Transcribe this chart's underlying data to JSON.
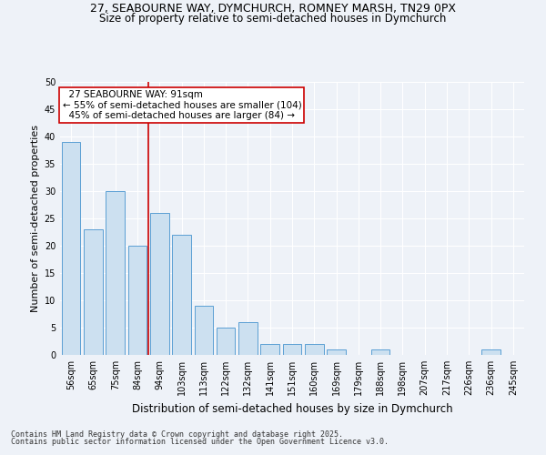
{
  "title1": "27, SEABOURNE WAY, DYMCHURCH, ROMNEY MARSH, TN29 0PX",
  "title2": "Size of property relative to semi-detached houses in Dymchurch",
  "xlabel": "Distribution of semi-detached houses by size in Dymchurch",
  "ylabel": "Number of semi-detached properties",
  "categories": [
    "56sqm",
    "65sqm",
    "75sqm",
    "84sqm",
    "94sqm",
    "103sqm",
    "113sqm",
    "122sqm",
    "132sqm",
    "141sqm",
    "151sqm",
    "160sqm",
    "169sqm",
    "179sqm",
    "188sqm",
    "198sqm",
    "207sqm",
    "217sqm",
    "226sqm",
    "236sqm",
    "245sqm"
  ],
  "values": [
    39,
    23,
    30,
    20,
    26,
    22,
    9,
    5,
    6,
    2,
    2,
    2,
    1,
    0,
    1,
    0,
    0,
    0,
    0,
    1,
    0
  ],
  "bar_color": "#cce0f0",
  "bar_edge_color": "#5a9fd4",
  "property_line_bin": 4,
  "property_line_label": "27 SEABOURNE WAY: 91sqm",
  "pct_smaller": "55% of semi-detached houses are smaller (104)",
  "pct_larger": "45% of semi-detached houses are larger (84)",
  "annotation_box_color": "#ffffff",
  "annotation_box_edge": "#cc0000",
  "vline_color": "#cc0000",
  "footer1": "Contains HM Land Registry data © Crown copyright and database right 2025.",
  "footer2": "Contains public sector information licensed under the Open Government Licence v3.0.",
  "ylim": [
    0,
    50
  ],
  "background_color": "#eef2f8",
  "grid_color": "#ffffff",
  "title_fontsize": 9,
  "subtitle_fontsize": 8.5,
  "tick_fontsize": 7,
  "ylabel_fontsize": 8,
  "xlabel_fontsize": 8.5,
  "footer_fontsize": 6,
  "annotation_fontsize": 7.5
}
